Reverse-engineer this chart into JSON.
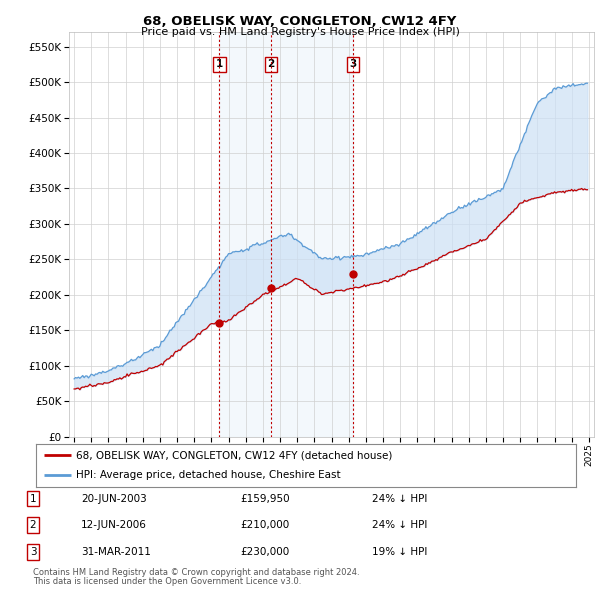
{
  "title": "68, OBELISK WAY, CONGLETON, CW12 4FY",
  "subtitle": "Price paid vs. HM Land Registry's House Price Index (HPI)",
  "title_fontsize": 9.5,
  "subtitle_fontsize": 8.0,
  "sales": [
    {
      "label": "1",
      "date_num": 2003.47,
      "price": 159950,
      "date_str": "20-JUN-2003",
      "pct": "24% ↓ HPI"
    },
    {
      "label": "2",
      "date_num": 2006.47,
      "price": 210000,
      "date_str": "12-JUN-2006",
      "pct": "24% ↓ HPI"
    },
    {
      "label": "3",
      "date_num": 2011.25,
      "price": 230000,
      "date_str": "31-MAR-2011",
      "pct": "19% ↓ HPI"
    }
  ],
  "hpi_color": "#5b9bd5",
  "hpi_fill_color": "#cce0f5",
  "sale_color": "#c00000",
  "vline_color": "#c00000",
  "grid_color": "#d0d0d0",
  "background_color": "#ffffff",
  "ylim": [
    0,
    570000
  ],
  "xlim": [
    1994.7,
    2025.3
  ],
  "legend_label_sale": "68, OBELISK WAY, CONGLETON, CW12 4FY (detached house)",
  "legend_label_hpi": "HPI: Average price, detached house, Cheshire East",
  "footer1": "Contains HM Land Registry data © Crown copyright and database right 2024.",
  "footer2": "This data is licensed under the Open Government Licence v3.0."
}
